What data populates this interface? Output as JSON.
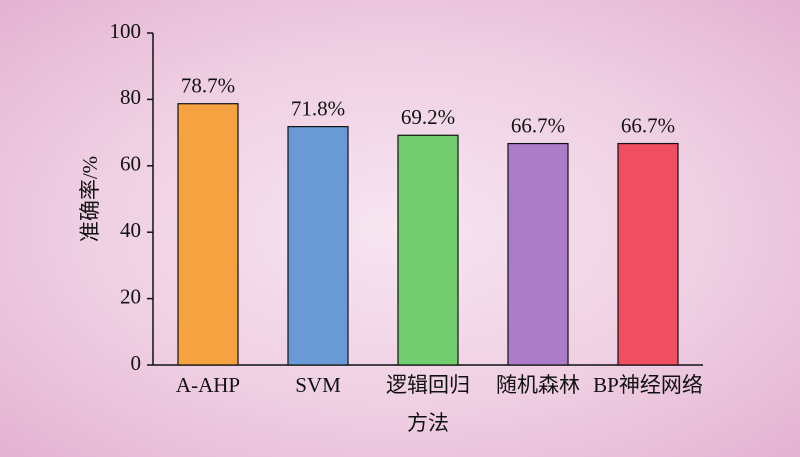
{
  "chart_data": {
    "type": "bar",
    "xlabel": "方法",
    "ylabel": "准确率/%",
    "categories": [
      "A-AHP",
      "SVM",
      "逻辑回归",
      "随机森林",
      "BP神经网络"
    ],
    "values": [
      78.7,
      71.8,
      69.2,
      66.7,
      66.7
    ],
    "value_labels": [
      "78.7%",
      "71.8%",
      "69.2%",
      "66.7%",
      "66.7%"
    ],
    "colors": [
      "#f4a340",
      "#6a9ad6",
      "#72cd6e",
      "#ac7cc8",
      "#ef4f60"
    ],
    "ylim": [
      0,
      100
    ],
    "yticks": [
      0,
      20,
      40,
      60,
      80,
      100
    ],
    "grid": false
  }
}
